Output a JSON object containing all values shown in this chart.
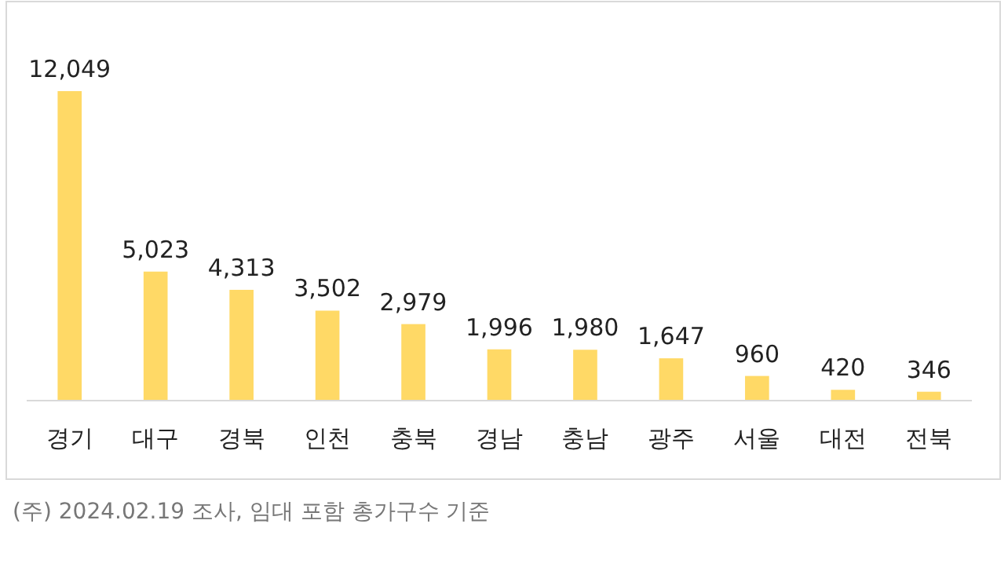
{
  "chart_data": {
    "type": "bar",
    "categories": [
      "경기",
      "대구",
      "경북",
      "인천",
      "충북",
      "경남",
      "충남",
      "광주",
      "서울",
      "대전",
      "전북"
    ],
    "values": [
      12049,
      5023,
      4313,
      3502,
      2979,
      1996,
      1980,
      1647,
      960,
      420,
      346
    ],
    "color": "#ffd966",
    "value_labels": [
      "12,049",
      "5,023",
      "4,313",
      "3,502",
      "2,979",
      "1,996",
      "1,980",
      "1,647",
      "960",
      "420",
      "346"
    ],
    "annotations": [
      "(주) 2024.02.19 조사, 임대 포함 총가구수 기준"
    ]
  }
}
